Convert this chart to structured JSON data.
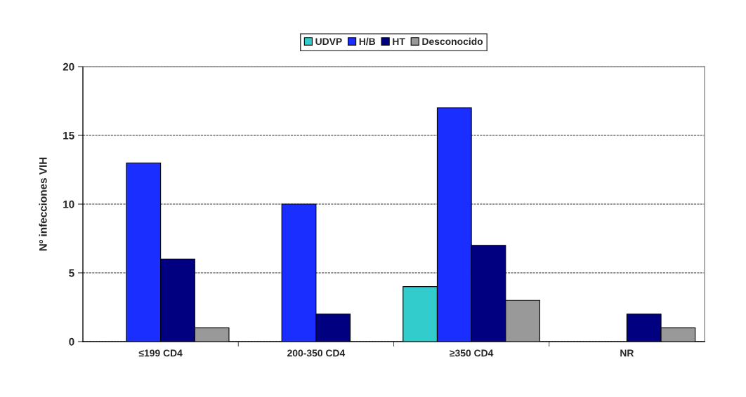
{
  "chart_data": {
    "type": "bar",
    "categories": [
      "≤199 CD4",
      "200-350 CD4",
      "≥350 CD4",
      "NR"
    ],
    "ylabel": "Nº infecciones VIH",
    "series": [
      {
        "name": "UDVP",
        "color": "#33cccc",
        "values": [
          null,
          null,
          4,
          null
        ]
      },
      {
        "name": "H/B",
        "color": "#1a2eff",
        "values": [
          13,
          10,
          17,
          null
        ]
      },
      {
        "name": "HT",
        "color": "#000080",
        "values": [
          6,
          2,
          7,
          2
        ]
      },
      {
        "name": "Desconocido",
        "color": "#999999",
        "values": [
          1,
          null,
          3,
          1
        ]
      }
    ],
    "ylim": [
      0,
      20
    ],
    "yticks": [
      0,
      5,
      10,
      15,
      20
    ],
    "grid": "y",
    "legend": "top"
  }
}
